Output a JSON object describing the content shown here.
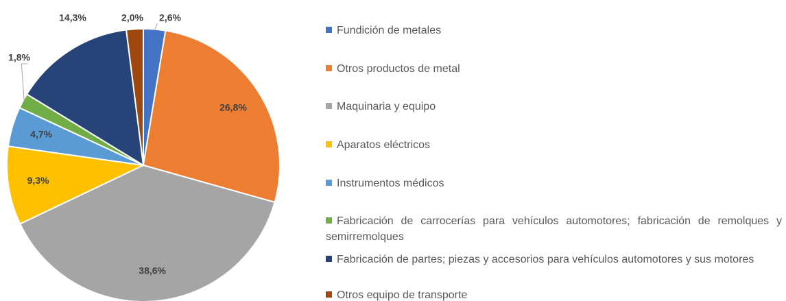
{
  "chart_data": {
    "type": "pie",
    "categories": [
      "Fundición de metales",
      "Otros productos de metal",
      "Maquinaria y equipo",
      "Aparatos eléctricos",
      "Instrumentos médicos",
      "Fabricación de carrocerías para vehículos automotores; fabricación de remolques y semirremolques",
      "Fabricación de partes; piezas y accesorios para vehículos automotores y sus motores",
      "Otros equipo de transporte"
    ],
    "values": [
      2.6,
      26.8,
      38.6,
      9.3,
      4.7,
      1.8,
      14.3,
      2.0
    ],
    "value_labels": [
      "2,6%",
      "26,8%",
      "38,6%",
      "9,3%",
      "4,7%",
      "1,8%",
      "14,3%",
      "2,0%"
    ],
    "colors": [
      "#4472c4",
      "#ed7d31",
      "#a5a5a5",
      "#ffc000",
      "#5b9bd5",
      "#70ad47",
      "#264478",
      "#9e480e"
    ]
  }
}
